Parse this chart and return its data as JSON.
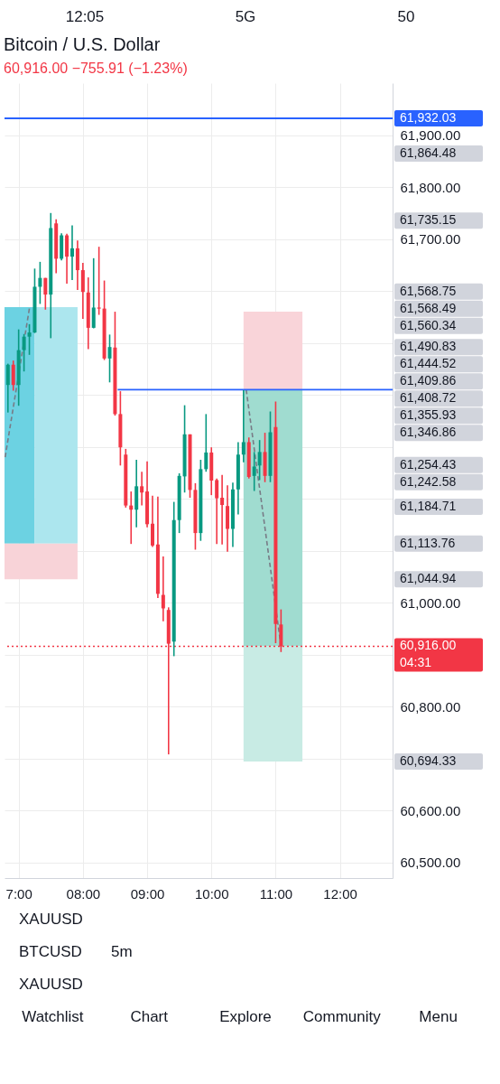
{
  "chart_data": [
    {
      "type": "other",
      "annotations": [
        "12:05",
        "5G",
        "50"
      ]
    },
    {
      "type": "candlestick",
      "title": "Bitcoin / U.S. Dollar",
      "subtitle": "60,916.00 −755.91 (−1.23%)",
      "x": [
        6.8333,
        6.9167,
        7,
        7.0833,
        7.1667,
        7.25,
        7.3333,
        7.4167,
        7.5,
        7.5833,
        7.6667,
        7.75,
        7.8333,
        7.9167,
        8,
        8.0833,
        8.1667,
        8.25,
        8.3333,
        8.4167,
        8.5,
        8.5833,
        8.6667,
        8.75,
        8.8333,
        8.9167,
        9,
        9.0833,
        9.1667,
        9.25,
        9.3333,
        9.4167,
        9.5,
        9.5833,
        9.6667,
        9.75,
        9.8333,
        9.9167,
        10,
        10.0833,
        10.1667,
        10.25,
        10.3333,
        10.4167,
        10.5,
        10.5833,
        10.6667,
        10.75,
        10.8333,
        10.9167,
        11,
        11.0833
      ],
      "ohlc": [
        [
          61419,
          61460,
          61366,
          61458
        ],
        [
          61458,
          61466,
          61408,
          61419
        ],
        [
          61419,
          61526,
          61379,
          61486
        ],
        [
          61486,
          61517,
          61445,
          61512
        ],
        [
          61512,
          61536,
          61477,
          61520
        ],
        [
          61520,
          61643,
          61519,
          61608
        ],
        [
          61608,
          61656,
          61575,
          61625
        ],
        [
          61625,
          61625,
          61564,
          61593
        ],
        [
          61593,
          61750,
          61509,
          61721
        ],
        [
          61730,
          61738,
          61634,
          61662
        ],
        [
          61662,
          61711,
          61659,
          61707
        ],
        [
          61707,
          61710,
          61614,
          61666
        ],
        [
          61666,
          61726,
          61621,
          61682
        ],
        [
          61682,
          61697,
          61602,
          61640
        ],
        [
          61640,
          61654,
          61546,
          61598
        ],
        [
          61597,
          61626,
          61488,
          61529
        ],
        [
          61529,
          61663,
          61528,
          61568
        ],
        [
          61568,
          61685,
          61554,
          61566
        ],
        [
          61566,
          61620,
          61467,
          61470
        ],
        [
          61470,
          61516,
          61424,
          61492
        ],
        [
          61491,
          61560,
          61360,
          61363
        ],
        [
          61363,
          61407,
          61264,
          61299
        ],
        [
          61285,
          61296,
          61183,
          61187
        ],
        [
          61187,
          61214,
          61113,
          61179
        ],
        [
          61179,
          61275,
          61145,
          61224
        ],
        [
          61224,
          61252,
          61187,
          61212
        ],
        [
          61214,
          61272,
          61145,
          61151
        ],
        [
          61152,
          61206,
          61107,
          61110
        ],
        [
          61112,
          61204,
          61009,
          61017
        ],
        [
          61015,
          61089,
          60964,
          60989
        ],
        [
          60986,
          60991,
          60708,
          60921
        ],
        [
          60925,
          61194,
          60897,
          61159
        ],
        [
          61159,
          61249,
          61134,
          61244
        ],
        [
          61243,
          61380,
          61212,
          61324
        ],
        [
          61324,
          61324,
          61202,
          61217
        ],
        [
          61217,
          61230,
          61102,
          61134
        ],
        [
          61134,
          61275,
          61119,
          61257
        ],
        [
          61257,
          61363,
          61252,
          61289
        ],
        [
          61289,
          61299,
          61207,
          61235
        ],
        [
          61236,
          61239,
          61113,
          61201
        ],
        [
          61202,
          61246,
          61112,
          61188
        ],
        [
          61186,
          61226,
          61098,
          61142
        ],
        [
          61142,
          61231,
          61107,
          61218
        ],
        [
          61218,
          61309,
          61170,
          61285
        ],
        [
          61285,
          61409,
          61270,
          61309
        ],
        [
          61309,
          61318,
          61239,
          61242
        ],
        [
          61244,
          61290,
          61215,
          61262
        ],
        [
          61264,
          61313,
          61236,
          61290
        ],
        [
          61290,
          61327,
          61232,
          61244
        ],
        [
          61244,
          61368,
          61232,
          61328
        ],
        [
          61338,
          61387,
          60922,
          60959
        ],
        [
          60958,
          60987,
          60905,
          60916
        ]
      ],
      "colors": [
        "#089981",
        "#f23645",
        "#089981",
        "#089981",
        "#089981",
        "#089981",
        "#089981",
        "#f23645",
        "#089981",
        "#f23645",
        "#089981",
        "#f23645",
        "#089981",
        "#f23645",
        "#f23645",
        "#f23645",
        "#089981",
        "#f23645",
        "#f23645",
        "#089981",
        "#f23645",
        "#f23645",
        "#f23645",
        "#f23645",
        "#089981",
        "#f23645",
        "#f23645",
        "#f23645",
        "#f23645",
        "#f23645",
        "#f23645",
        "#089981",
        "#089981",
        "#089981",
        "#f23645",
        "#f23645",
        "#089981",
        "#089981",
        "#f23645",
        "#f23645",
        "#f23645",
        "#f23645",
        "#089981",
        "#089981",
        "#089981",
        "#f23645",
        "#089981",
        "#089981",
        "#f23645",
        "#089981",
        "#f23645",
        "#f23645"
      ],
      "series": [
        {
          "type": "area",
          "x": [
            6.78,
            7.25
          ],
          "lower": [
            61113.76,
            61113.76
          ],
          "upper": [
            61568.75,
            61568.75
          ],
          "values": [
            null,
            null
          ],
          "color": "#6cd2e2"
        },
        {
          "type": "area",
          "x": [
            7.25,
            7.9167
          ],
          "lower": [
            61113.76,
            61113.76
          ],
          "upper": [
            61568.75,
            61568.75
          ],
          "values": [
            null,
            null
          ],
          "color": "#ace6ee"
        },
        {
          "type": "area",
          "x": [
            6.78,
            7.9167
          ],
          "lower": [
            61044.94,
            61044.94
          ],
          "upper": [
            61113.76,
            61113.76
          ],
          "values": [
            null,
            null
          ],
          "color": "#f8d3d8"
        },
        {
          "type": "area",
          "x": [
            10.5,
            11.4167
          ],
          "lower": [
            61409.86,
            61409.86
          ],
          "upper": [
            61560.34,
            61560.34
          ],
          "values": [
            null,
            null
          ],
          "color": "#f9d4d9"
        },
        {
          "type": "area",
          "x": [
            10.5,
            11.4167
          ],
          "lower": [
            60916,
            60916
          ],
          "upper": [
            61409.86,
            61409.86
          ],
          "values": [
            null,
            null
          ],
          "color": "#a0dcd0"
        },
        {
          "type": "area",
          "x": [
            10.5,
            11.4167
          ],
          "lower": [
            60694.33,
            60694.33
          ],
          "upper": [
            60916,
            60916
          ],
          "values": [
            null,
            null
          ],
          "color": "#c8ebe4"
        },
        {
          "type": "line",
          "x": [
            6.79,
            7.1667
          ],
          "values": [
            61280,
            61566
          ],
          "color": "#787b86",
          "line_style": "dashed"
        },
        {
          "type": "line",
          "x": [
            10.5417,
            11.0833
          ],
          "values": [
            61410,
            60916
          ],
          "color": "#787b86",
          "line_style": "dashed"
        },
        {
          "type": "line",
          "x": [
            8.5417,
            12.82
          ],
          "values": [
            61410,
            61410
          ],
          "color": "#2962ff"
        }
      ],
      "ref_lines": [
        {
          "axis": "y",
          "value": 61932.03,
          "label": "61,932.03",
          "color": "#2962ff"
        },
        {
          "axis": "y",
          "value": 60916,
          "label": "60,916.00\n04:31",
          "color": "#f23645",
          "line_style": "dotted"
        }
      ],
      "annotations": [
        "61,864.48",
        "61,735.15",
        "61,568.75",
        "61,568.49",
        "61,560.34",
        "61,490.83",
        "61,444.52",
        "61,409.86",
        "61,408.72",
        "61,355.93",
        "61,346.86",
        "61,254.43",
        "61,242.58",
        "61,184.71",
        "61,113.76",
        "61,044.94",
        "60,694.33"
      ],
      "xlim": [
        6.78,
        12.82
      ],
      "xticks": [
        {
          "value": 7,
          "label": "7:00"
        },
        {
          "value": 8,
          "label": "08:00"
        },
        {
          "value": 9,
          "label": "09:00"
        },
        {
          "value": 10,
          "label": "10:00"
        },
        {
          "value": 11,
          "label": "11:00"
        },
        {
          "value": 12,
          "label": "12:00"
        }
      ],
      "ylim": [
        60470,
        62000
      ],
      "yticks": [
        {
          "value": 60500,
          "label": "60,500.00"
        },
        {
          "value": 60600,
          "label": "60,600.00"
        },
        {
          "value": 60700,
          "label": null
        },
        {
          "value": 60800,
          "label": "60,800.00"
        },
        {
          "value": 60900,
          "label": null
        },
        {
          "value": 61000,
          "label": "61,000.00"
        },
        {
          "value": 61100,
          "label": null
        },
        {
          "value": 61200,
          "label": null
        },
        {
          "value": 61300,
          "label": null
        },
        {
          "value": 61400,
          "label": null
        },
        {
          "value": 61500,
          "label": null
        },
        {
          "value": 61600,
          "label": null
        },
        {
          "value": 61700,
          "label": "61,700.00"
        },
        {
          "value": 61800,
          "label": "61,800.00"
        },
        {
          "value": 61900,
          "label": "61,900.00"
        }
      ],
      "grid": true
    },
    {
      "type": "other",
      "annotations": [
        "XAUUSD"
      ]
    },
    {
      "type": "other",
      "annotations": [
        "BTCUSD",
        "5m"
      ]
    },
    {
      "type": "other",
      "annotations": [
        "XAUUSD"
      ]
    },
    {
      "type": "other",
      "annotations": [
        "Watchlist",
        "Chart",
        "Explore",
        "Community",
        "Menu"
      ]
    }
  ]
}
